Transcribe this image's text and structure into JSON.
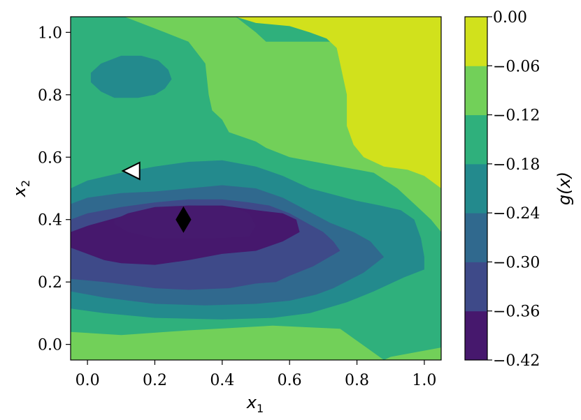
{
  "chart_data": {
    "type": "contour",
    "title": "",
    "xlabel": "x1",
    "ylabel": "x2",
    "xlim": [
      -0.05,
      1.05
    ],
    "ylim": [
      -0.05,
      1.05
    ],
    "x_ticks": [
      "0.0",
      "0.2",
      "0.4",
      "0.6",
      "0.8",
      "1.0"
    ],
    "y_ticks": [
      "0.0",
      "0.2",
      "0.4",
      "0.6",
      "0.8",
      "1.0"
    ],
    "colorbar": {
      "label": "g(x)",
      "levels": [
        -0.42,
        -0.36,
        -0.3,
        -0.24,
        -0.18,
        -0.12,
        -0.06,
        0.0
      ],
      "tick_labels": [
        "0.00",
        "−0.06",
        "−0.12",
        "−0.18",
        "−0.24",
        "−0.30",
        "−0.36",
        "−0.42"
      ],
      "colors": [
        "#46186d",
        "#3e4a89",
        "#30698e",
        "#238a8d",
        "#2fb07c",
        "#72d059",
        "#d1e11c"
      ]
    },
    "fill_color": "#2fb07c",
    "regions": [
      {
        "name": "lower-left band",
        "level_index": 5,
        "points": [
          [
            -0.05,
            -0.05
          ],
          [
            0.88,
            -0.05
          ],
          [
            0.9,
            -0.04
          ],
          [
            1.05,
            -0.01
          ],
          [
            1.05,
            -0.05
          ]
        ]
      },
      {
        "name": "lower band",
        "level_index": 5,
        "points": [
          [
            -0.05,
            -0.05
          ],
          [
            -0.05,
            0.04
          ],
          [
            0.1,
            0.03
          ],
          [
            0.3,
            0.045
          ],
          [
            0.55,
            0.06
          ],
          [
            0.75,
            0.05
          ],
          [
            0.88,
            -0.05
          ]
        ]
      },
      {
        "name": "upper right band",
        "level_index": 5,
        "points": [
          [
            0.11,
            1.05
          ],
          [
            0.44,
            1.05
          ],
          [
            0.5,
            1.0
          ],
          [
            0.53,
            0.97
          ],
          [
            1.05,
            0.97
          ],
          [
            1.05,
            0.36
          ],
          [
            1.02,
            0.4
          ],
          [
            0.98,
            0.44
          ],
          [
            0.92,
            0.5
          ],
          [
            0.85,
            0.55
          ],
          [
            0.75,
            0.57
          ],
          [
            0.6,
            0.6
          ],
          [
            0.53,
            0.63
          ],
          [
            0.5,
            0.65
          ],
          [
            0.42,
            0.68
          ],
          [
            0.4,
            0.72
          ],
          [
            0.37,
            0.75
          ],
          [
            0.36,
            0.8
          ],
          [
            0.35,
            0.9
          ],
          [
            0.3,
            0.97
          ],
          [
            0.23,
            1.0
          ]
        ]
      },
      {
        "name": "top-right zero region",
        "level_index": 6,
        "points": [
          [
            0.44,
            1.05
          ],
          [
            1.05,
            1.05
          ],
          [
            1.05,
            0.5
          ],
          [
            1.0,
            0.54
          ],
          [
            0.95,
            0.56
          ],
          [
            0.88,
            0.57
          ],
          [
            0.82,
            0.6
          ],
          [
            0.79,
            0.64
          ],
          [
            0.77,
            0.7
          ],
          [
            0.77,
            0.8
          ],
          [
            0.75,
            0.9
          ],
          [
            0.74,
            0.95
          ],
          [
            0.71,
            0.98
          ],
          [
            0.66,
            1.0
          ],
          [
            0.6,
            1.02
          ],
          [
            0.5,
            1.03
          ]
        ]
      },
      {
        "name": "upper-left blob",
        "level_index": 3,
        "points": [
          [
            0.01,
            0.87
          ],
          [
            0.04,
            0.9
          ],
          [
            0.1,
            0.925
          ],
          [
            0.16,
            0.925
          ],
          [
            0.21,
            0.91
          ],
          [
            0.24,
            0.88
          ],
          [
            0.25,
            0.85
          ],
          [
            0.23,
            0.82
          ],
          [
            0.2,
            0.8
          ],
          [
            0.15,
            0.79
          ],
          [
            0.08,
            0.79
          ],
          [
            0.04,
            0.81
          ],
          [
            0.01,
            0.84
          ]
        ]
      },
      {
        "name": "outer ring",
        "level_index": 3,
        "points": [
          [
            -0.05,
            0.115
          ],
          [
            0.05,
            0.1
          ],
          [
            0.2,
            0.085
          ],
          [
            0.4,
            0.08
          ],
          [
            0.55,
            0.085
          ],
          [
            0.66,
            0.1
          ],
          [
            0.77,
            0.135
          ],
          [
            0.85,
            0.17
          ],
          [
            0.94,
            0.215
          ],
          [
            1.0,
            0.24
          ],
          [
            1.0,
            0.28
          ],
          [
            0.99,
            0.34
          ],
          [
            0.97,
            0.4
          ],
          [
            0.93,
            0.43
          ],
          [
            0.87,
            0.445
          ],
          [
            0.8,
            0.46
          ],
          [
            0.73,
            0.48
          ],
          [
            0.66,
            0.5
          ],
          [
            0.58,
            0.54
          ],
          [
            0.5,
            0.57
          ],
          [
            0.4,
            0.59
          ],
          [
            0.3,
            0.585
          ],
          [
            0.2,
            0.57
          ],
          [
            0.1,
            0.55
          ],
          [
            0.0,
            0.525
          ],
          [
            -0.05,
            0.5
          ]
        ]
      },
      {
        "name": "ring 2",
        "level_index": 2,
        "points": [
          [
            -0.05,
            0.17
          ],
          [
            0.05,
            0.15
          ],
          [
            0.2,
            0.13
          ],
          [
            0.35,
            0.125
          ],
          [
            0.5,
            0.13
          ],
          [
            0.6,
            0.14
          ],
          [
            0.68,
            0.16
          ],
          [
            0.73,
            0.18
          ],
          [
            0.82,
            0.23
          ],
          [
            0.88,
            0.28
          ],
          [
            0.84,
            0.33
          ],
          [
            0.79,
            0.36
          ],
          [
            0.72,
            0.39
          ],
          [
            0.65,
            0.43
          ],
          [
            0.58,
            0.47
          ],
          [
            0.5,
            0.5
          ],
          [
            0.4,
            0.51
          ],
          [
            0.3,
            0.5
          ],
          [
            0.2,
            0.49
          ],
          [
            0.1,
            0.485
          ],
          [
            0.0,
            0.47
          ],
          [
            -0.05,
            0.45
          ]
        ]
      },
      {
        "name": "ring 3",
        "level_index": 1,
        "points": [
          [
            -0.05,
            0.21
          ],
          [
            0.05,
            0.2
          ],
          [
            0.2,
            0.18
          ],
          [
            0.3,
            0.175
          ],
          [
            0.42,
            0.18
          ],
          [
            0.5,
            0.195
          ],
          [
            0.56,
            0.2
          ],
          [
            0.6,
            0.22
          ],
          [
            0.67,
            0.25
          ],
          [
            0.75,
            0.3
          ],
          [
            0.73,
            0.33
          ],
          [
            0.7,
            0.36
          ],
          [
            0.65,
            0.39
          ],
          [
            0.6,
            0.42
          ],
          [
            0.54,
            0.445
          ],
          [
            0.48,
            0.455
          ],
          [
            0.4,
            0.465
          ],
          [
            0.3,
            0.465
          ],
          [
            0.2,
            0.455
          ],
          [
            0.1,
            0.44
          ],
          [
            0.0,
            0.42
          ],
          [
            -0.05,
            0.4
          ]
        ]
      },
      {
        "name": "ring 4",
        "level_index": 0,
        "points": [
          [
            -0.05,
            0.31
          ],
          [
            0.0,
            0.29
          ],
          [
            0.05,
            0.27
          ],
          [
            0.1,
            0.26
          ],
          [
            0.2,
            0.255
          ],
          [
            0.3,
            0.27
          ],
          [
            0.4,
            0.29
          ],
          [
            0.5,
            0.3
          ],
          [
            0.58,
            0.33
          ],
          [
            0.63,
            0.36
          ],
          [
            0.62,
            0.4
          ],
          [
            0.58,
            0.42
          ],
          [
            0.5,
            0.43
          ],
          [
            0.4,
            0.445
          ],
          [
            0.3,
            0.445
          ],
          [
            0.2,
            0.435
          ],
          [
            0.1,
            0.41
          ],
          [
            0.0,
            0.38
          ],
          [
            -0.05,
            0.36
          ]
        ]
      },
      {
        "name": "core",
        "level_index": -1,
        "points": [
          [
            0.08,
            0.385
          ],
          [
            0.12,
            0.36
          ],
          [
            0.2,
            0.34
          ],
          [
            0.3,
            0.34
          ],
          [
            0.38,
            0.34
          ],
          [
            0.48,
            0.345
          ],
          [
            0.5,
            0.38
          ],
          [
            0.48,
            0.42
          ],
          [
            0.43,
            0.44
          ],
          [
            0.3,
            0.445
          ],
          [
            0.2,
            0.44
          ],
          [
            0.12,
            0.42
          ],
          [
            0.08,
            0.4
          ]
        ]
      }
    ],
    "markers": [
      {
        "name": "white-triangle",
        "x": 0.13,
        "y": 0.556,
        "shape": "triangle-left",
        "fill": "#ffffff",
        "stroke": "#000000"
      },
      {
        "name": "black-diamond",
        "x": 0.285,
        "y": 0.4,
        "shape": "diamond",
        "fill": "#000000",
        "stroke": "#000000"
      }
    ]
  }
}
